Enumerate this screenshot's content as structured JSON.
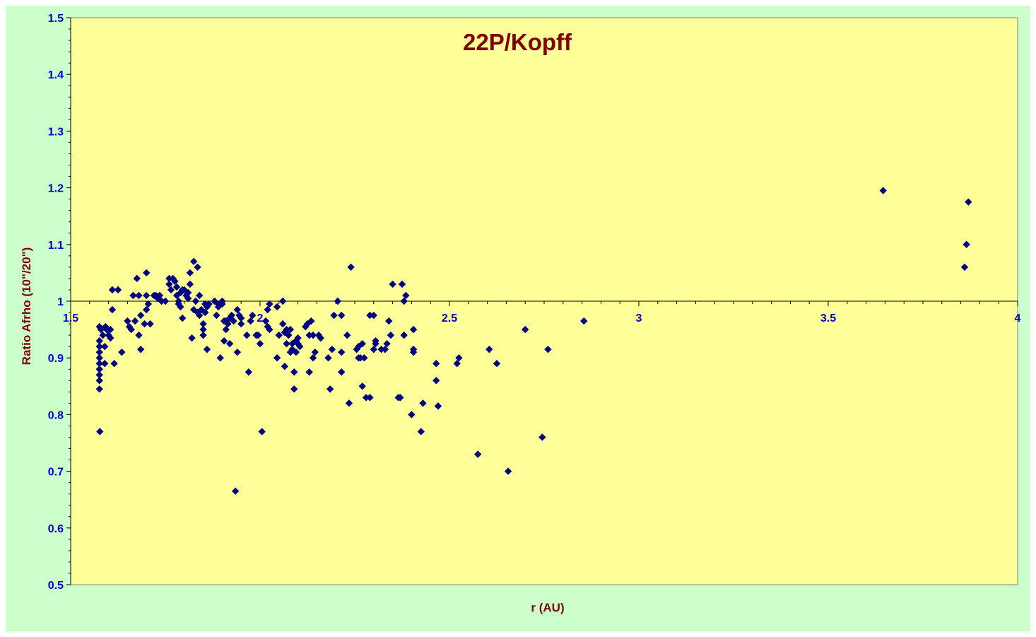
{
  "colors": {
    "chart_area": "#ccffcc",
    "plot_area": "#ffff99",
    "axis": "#000000",
    "marker": "#000080",
    "title": "#800000",
    "tick_label": "#0000cc"
  },
  "chart_data": {
    "type": "scatter",
    "title": "22P/Kopff",
    "xlabel": "r (AU)",
    "ylabel": "Ratio Afrho (10\"/20\")",
    "xlim": [
      1.5,
      4
    ],
    "ylim": [
      0.5,
      1.5
    ],
    "x_crosses_y_at": 1.0,
    "xticks": [
      "1.5",
      "2",
      "2.5",
      "3",
      "3.5",
      "4"
    ],
    "yticks": [
      "0.5",
      "0.6",
      "0.7",
      "0.8",
      "0.9",
      "1",
      "1.1",
      "1.2",
      "1.3",
      "1.4",
      "1.5"
    ],
    "grid": false,
    "legend": "none",
    "marker": "diamond",
    "points": [
      [
        1.576,
        0.955
      ],
      [
        1.576,
        0.93
      ],
      [
        1.576,
        0.92
      ],
      [
        1.576,
        0.91
      ],
      [
        1.576,
        0.9
      ],
      [
        1.576,
        0.89
      ],
      [
        1.576,
        0.88
      ],
      [
        1.576,
        0.87
      ],
      [
        1.576,
        0.86
      ],
      [
        1.576,
        0.845
      ],
      [
        1.577,
        0.77
      ],
      [
        1.58,
        0.95
      ],
      [
        1.585,
        0.94
      ],
      [
        1.59,
        0.92
      ],
      [
        1.59,
        0.89
      ],
      [
        1.592,
        0.955
      ],
      [
        1.595,
        0.95
      ],
      [
        1.6,
        0.94
      ],
      [
        1.605,
        0.95
      ],
      [
        1.605,
        0.935
      ],
      [
        1.61,
        0.985
      ],
      [
        1.61,
        1.02
      ],
      [
        1.615,
        0.89
      ],
      [
        1.625,
        1.02
      ],
      [
        1.635,
        0.91
      ],
      [
        1.65,
        0.965
      ],
      [
        1.655,
        0.955
      ],
      [
        1.66,
        0.95
      ],
      [
        1.665,
        1.01
      ],
      [
        1.67,
        0.965
      ],
      [
        1.675,
        1.04
      ],
      [
        1.68,
        0.94
      ],
      [
        1.68,
        1.01
      ],
      [
        1.685,
        0.975
      ],
      [
        1.685,
        0.915
      ],
      [
        1.695,
        0.96
      ],
      [
        1.7,
        0.985
      ],
      [
        1.7,
        1.05
      ],
      [
        1.7,
        1.01
      ],
      [
        1.705,
        0.995
      ],
      [
        1.71,
        0.96
      ],
      [
        1.72,
        1.01
      ],
      [
        1.725,
        1.01
      ],
      [
        1.73,
        1.005
      ],
      [
        1.735,
        1.01
      ],
      [
        1.74,
        1.0
      ],
      [
        1.75,
        1.0
      ],
      [
        1.76,
        1.04
      ],
      [
        1.76,
        1.03
      ],
      [
        1.765,
        1.02
      ],
      [
        1.77,
        1.04
      ],
      [
        1.775,
        1.035
      ],
      [
        1.78,
        1.01
      ],
      [
        1.78,
        1.025
      ],
      [
        1.785,
        1.0
      ],
      [
        1.785,
        0.995
      ],
      [
        1.79,
        1.015
      ],
      [
        1.79,
        0.99
      ],
      [
        1.795,
        0.97
      ],
      [
        1.795,
        1.02
      ],
      [
        1.8,
        1.02
      ],
      [
        1.805,
        1.01
      ],
      [
        1.81,
        1.005
      ],
      [
        1.81,
        1.015
      ],
      [
        1.815,
        1.05
      ],
      [
        1.815,
        1.03
      ],
      [
        1.82,
        0.935
      ],
      [
        1.825,
        1.07
      ],
      [
        1.825,
        0.985
      ],
      [
        1.83,
        1.0
      ],
      [
        1.835,
        1.06
      ],
      [
        1.835,
        0.98
      ],
      [
        1.84,
        0.975
      ],
      [
        1.84,
        1.01
      ],
      [
        1.845,
        0.985
      ],
      [
        1.85,
        0.96
      ],
      [
        1.85,
        0.95
      ],
      [
        1.85,
        0.94
      ],
      [
        1.855,
        0.995
      ],
      [
        1.855,
        0.98
      ],
      [
        1.86,
        0.915
      ],
      [
        1.86,
        0.99
      ],
      [
        1.865,
        0.995
      ],
      [
        1.88,
        1.0
      ],
      [
        1.885,
        0.975
      ],
      [
        1.89,
        0.995
      ],
      [
        1.89,
        0.99
      ],
      [
        1.895,
        0.9
      ],
      [
        1.9,
        1.0
      ],
      [
        1.9,
        0.995
      ],
      [
        1.905,
        0.93
      ],
      [
        1.905,
        0.965
      ],
      [
        1.91,
        0.95
      ],
      [
        1.91,
        0.965
      ],
      [
        1.915,
        0.96
      ],
      [
        1.92,
        0.925
      ],
      [
        1.92,
        0.97
      ],
      [
        1.925,
        0.975
      ],
      [
        1.93,
        0.965
      ],
      [
        1.935,
        0.665
      ],
      [
        1.94,
        0.91
      ],
      [
        1.94,
        0.985
      ],
      [
        1.945,
        0.975
      ],
      [
        1.95,
        0.96
      ],
      [
        1.95,
        0.97
      ],
      [
        1.965,
        0.94
      ],
      [
        1.97,
        0.875
      ],
      [
        1.975,
        0.965
      ],
      [
        1.98,
        0.975
      ],
      [
        1.99,
        0.94
      ],
      [
        1.995,
        0.94
      ],
      [
        2.0,
        0.925
      ],
      [
        2.005,
        0.77
      ],
      [
        2.015,
        0.965
      ],
      [
        2.02,
        0.955
      ],
      [
        2.02,
        0.985
      ],
      [
        2.025,
        0.995
      ],
      [
        2.025,
        0.95
      ],
      [
        2.045,
        0.99
      ],
      [
        2.045,
        0.9
      ],
      [
        2.05,
        0.94
      ],
      [
        2.06,
        1.0
      ],
      [
        2.06,
        0.96
      ],
      [
        2.065,
        0.945
      ],
      [
        2.065,
        0.885
      ],
      [
        2.07,
        0.95
      ],
      [
        2.07,
        0.925
      ],
      [
        2.075,
        0.94
      ],
      [
        2.08,
        0.91
      ],
      [
        2.08,
        0.95
      ],
      [
        2.085,
        0.925
      ],
      [
        2.085,
        0.915
      ],
      [
        2.09,
        0.845
      ],
      [
        2.09,
        0.875
      ],
      [
        2.095,
        0.93
      ],
      [
        2.095,
        0.91
      ],
      [
        2.1,
        0.935
      ],
      [
        2.1,
        0.925
      ],
      [
        2.105,
        0.92
      ],
      [
        2.12,
        0.955
      ],
      [
        2.125,
        0.96
      ],
      [
        2.13,
        0.875
      ],
      [
        2.13,
        0.94
      ],
      [
        2.135,
        0.965
      ],
      [
        2.14,
        0.9
      ],
      [
        2.14,
        0.94
      ],
      [
        2.145,
        0.91
      ],
      [
        2.155,
        0.94
      ],
      [
        2.16,
        0.935
      ],
      [
        2.18,
        0.9
      ],
      [
        2.185,
        0.845
      ],
      [
        2.19,
        0.915
      ],
      [
        2.195,
        0.975
      ],
      [
        2.205,
        1.0
      ],
      [
        2.215,
        0.975
      ],
      [
        2.215,
        0.91
      ],
      [
        2.215,
        0.875
      ],
      [
        2.23,
        0.94
      ],
      [
        2.235,
        0.82
      ],
      [
        2.24,
        1.06
      ],
      [
        2.255,
        0.915
      ],
      [
        2.26,
        0.92
      ],
      [
        2.26,
        0.9
      ],
      [
        2.265,
        0.9
      ],
      [
        2.27,
        0.85
      ],
      [
        2.27,
        0.925
      ],
      [
        2.275,
        0.9
      ],
      [
        2.28,
        0.83
      ],
      [
        2.29,
        0.83
      ],
      [
        2.29,
        0.975
      ],
      [
        2.3,
        0.975
      ],
      [
        2.3,
        0.915
      ],
      [
        2.305,
        0.93
      ],
      [
        2.305,
        0.925
      ],
      [
        2.32,
        0.915
      ],
      [
        2.33,
        0.915
      ],
      [
        2.335,
        0.925
      ],
      [
        2.34,
        0.965
      ],
      [
        2.345,
        0.94
      ],
      [
        2.35,
        1.03
      ],
      [
        2.365,
        0.83
      ],
      [
        2.37,
        0.83
      ],
      [
        2.375,
        1.03
      ],
      [
        2.38,
        0.94
      ],
      [
        2.38,
        1.0
      ],
      [
        2.385,
        1.01
      ],
      [
        2.4,
        0.8
      ],
      [
        2.405,
        0.95
      ],
      [
        2.405,
        0.915
      ],
      [
        2.405,
        0.91
      ],
      [
        2.425,
        0.77
      ],
      [
        2.43,
        0.82
      ],
      [
        2.465,
        0.89
      ],
      [
        2.465,
        0.86
      ],
      [
        2.47,
        0.815
      ],
      [
        2.52,
        0.89
      ],
      [
        2.525,
        0.9
      ],
      [
        2.575,
        0.73
      ],
      [
        2.605,
        0.915
      ],
      [
        2.625,
        0.89
      ],
      [
        2.655,
        0.7
      ],
      [
        2.7,
        0.95
      ],
      [
        2.745,
        0.76
      ],
      [
        2.76,
        0.915
      ],
      [
        2.855,
        0.965
      ],
      [
        3.645,
        1.195
      ],
      [
        3.86,
        1.06
      ],
      [
        3.865,
        1.1
      ],
      [
        3.87,
        1.175
      ]
    ]
  }
}
